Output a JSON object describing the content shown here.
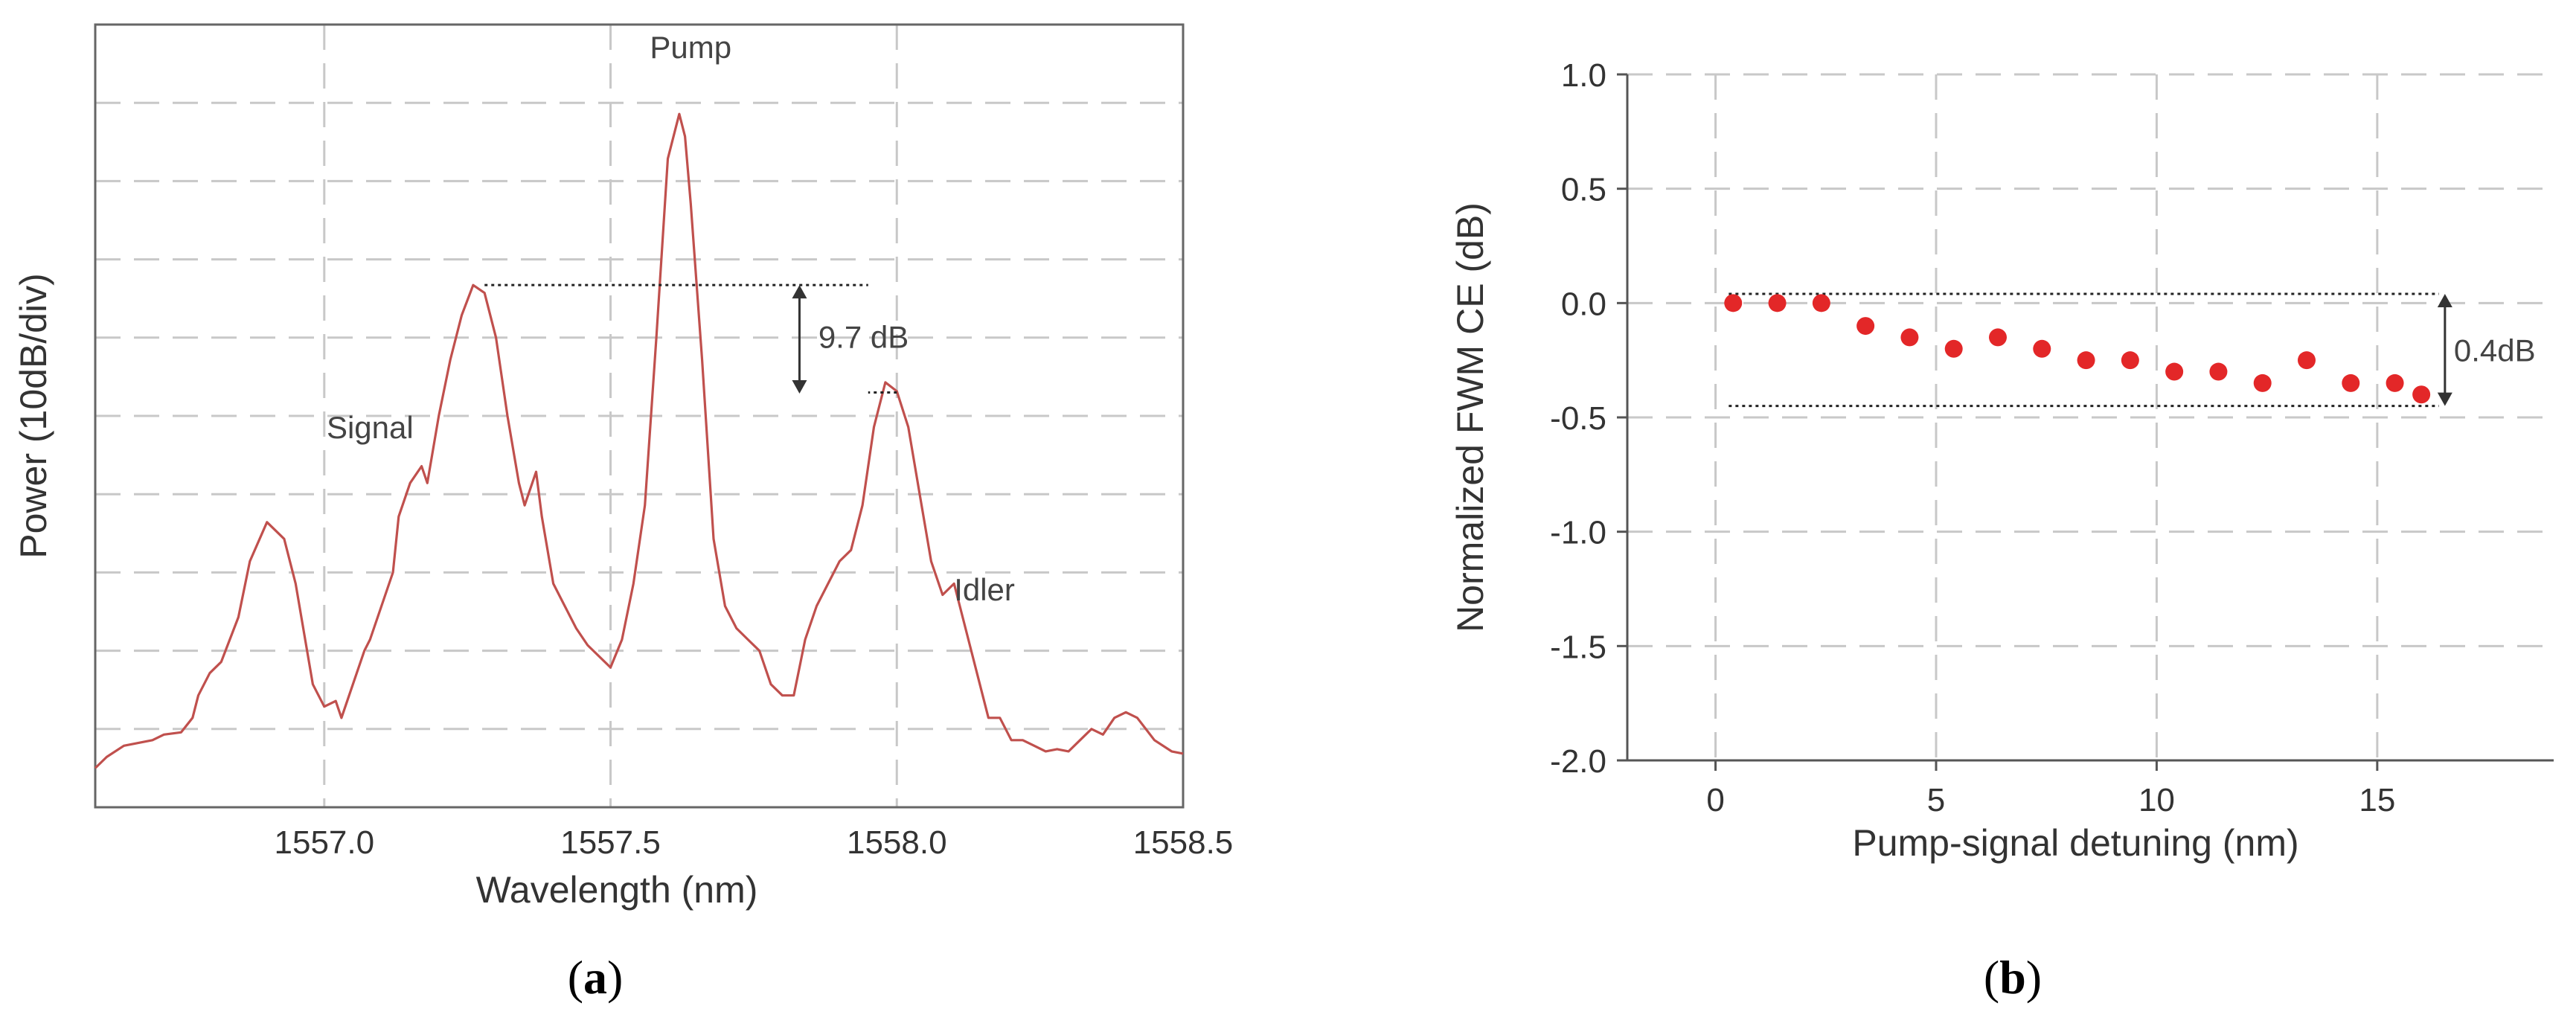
{
  "panels": [
    {
      "label_open": "(",
      "letter": "a",
      "label_close": ")"
    },
    {
      "label_open": "(",
      "letter": "b",
      "label_close": ")"
    }
  ],
  "chart_data": [
    {
      "type": "line",
      "title": "",
      "xlabel": "Wavelength (nm)",
      "ylabel": "Power (10dB/div)",
      "xlim": [
        1556.6,
        1558.5
      ],
      "ylim": [
        -70,
        0
      ],
      "x_ticks": [
        1557.0,
        1557.5,
        1558.0,
        1558.5
      ],
      "x_tick_labels": [
        "1557.0",
        "1557.5",
        "1558.0",
        "1558.5"
      ],
      "y_tick_labels": [],
      "grid": true,
      "line_color": "#c0504d",
      "series": [
        {
          "x": [
            1556.6,
            1556.62,
            1556.65,
            1556.7,
            1556.72,
            1556.75,
            1556.77,
            1556.78,
            1556.8,
            1556.82,
            1556.85,
            1556.87,
            1556.9,
            1556.93,
            1556.95,
            1556.97,
            1556.98,
            1557.0,
            1557.02,
            1557.03,
            1557.05,
            1557.07,
            1557.08,
            1557.1,
            1557.12,
            1557.13,
            1557.15,
            1557.17,
            1557.18,
            1557.2,
            1557.22,
            1557.24,
            1557.26,
            1557.28,
            1557.3,
            1557.32,
            1557.34,
            1557.35,
            1557.37,
            1557.38,
            1557.4,
            1557.42,
            1557.44,
            1557.46,
            1557.48,
            1557.5,
            1557.52,
            1557.54,
            1557.56,
            1557.58,
            1557.6,
            1557.62,
            1557.63,
            1557.64,
            1557.66,
            1557.68,
            1557.7,
            1557.72,
            1557.74,
            1557.76,
            1557.78,
            1557.8,
            1557.82,
            1557.84,
            1557.86,
            1557.88,
            1557.9,
            1557.92,
            1557.94,
            1557.96,
            1557.98,
            1558.0,
            1558.02,
            1558.04,
            1558.06,
            1558.08,
            1558.1,
            1558.12,
            1558.14,
            1558.16,
            1558.18,
            1558.2,
            1558.22,
            1558.24,
            1558.26,
            1558.28,
            1558.3,
            1558.32,
            1558.34,
            1558.36,
            1558.38,
            1558.4,
            1558.42,
            1558.45,
            1558.48,
            1558.5
          ],
          "y": [
            -66.5,
            -65.5,
            -64.5,
            -64,
            -63.5,
            -63.3,
            -62,
            -60,
            -58,
            -57,
            -53,
            -48,
            -44.5,
            -46,
            -50,
            -56,
            -59,
            -61,
            -60.5,
            -62,
            -59,
            -56,
            -55,
            -52,
            -49,
            -44,
            -41,
            -39.5,
            -41,
            -35,
            -30,
            -26,
            -23.3,
            -24,
            -28,
            -35,
            -41,
            -43,
            -40,
            -44,
            -50,
            -52,
            -54,
            -55.5,
            -56.5,
            -57.5,
            -55,
            -50,
            -43,
            -28,
            -12,
            -8,
            -10,
            -16,
            -30,
            -46,
            -52,
            -54,
            -55,
            -56,
            -59,
            -60,
            -60,
            -55,
            -52,
            -50,
            -48,
            -47,
            -43,
            -36,
            -32,
            -32.8,
            -36,
            -42,
            -48,
            -51,
            -50,
            -54,
            -58,
            -62,
            -62,
            -64,
            -64,
            -64.5,
            -65,
            -64.8,
            -65,
            -64,
            -63,
            -63.5,
            -62,
            -61.5,
            -62,
            -64,
            -65,
            -65.2
          ],
          "stroke_width": 3.2
        }
      ],
      "annotations": [
        {
          "text": "Pump",
          "x": 1557.64,
          "y": -3
        },
        {
          "text": "Signal",
          "x": 1557.08,
          "y": -37
        },
        {
          "text": "Idler",
          "x": 1558.1,
          "y": -51.5
        },
        {
          "text": "9.7 dB",
          "x": 1557.85,
          "y": -27.9
        }
      ],
      "reference_lines": [
        {
          "x1": 1557.28,
          "x2": 1557.95,
          "y": -23.3
        },
        {
          "x1": 1558.0,
          "x2": 1557.95,
          "y": -32.9
        }
      ],
      "difference_arrow": {
        "x": 1557.83,
        "y1": -23.3,
        "y2": -33.0,
        "label": "9.7 dB"
      }
    },
    {
      "type": "scatter",
      "title": "",
      "xlabel": "Pump-signal detuning (nm)",
      "ylabel": "Normalized FWM CE (dB)",
      "xlim": [
        -2,
        19
      ],
      "ylim": [
        -2.0,
        1.0
      ],
      "x_ticks": [
        0,
        5,
        10,
        15
      ],
      "x_tick_labels": [
        "0",
        "5",
        "10",
        "15"
      ],
      "y_ticks": [
        1.0,
        0.5,
        0.0,
        -0.5,
        -1.0,
        -1.5,
        -2.0
      ],
      "y_tick_labels": [
        "1.0",
        "0.5",
        "0.0",
        "-0.5",
        "-1.0",
        "-1.5",
        "-2.0"
      ],
      "grid": true,
      "marker_color": "#e32728",
      "series": [
        {
          "x": [
            0.4,
            1.4,
            2.4,
            3.4,
            4.4,
            5.4,
            6.4,
            7.4,
            8.4,
            9.4,
            10.4,
            11.4,
            12.4,
            13.4,
            14.4,
            15.4,
            16.0
          ],
          "y": [
            0.0,
            0.0,
            0.0,
            -0.1,
            -0.15,
            -0.2,
            -0.15,
            -0.2,
            -0.25,
            -0.25,
            -0.3,
            -0.3,
            -0.35,
            -0.25,
            -0.35,
            -0.35,
            -0.4
          ]
        }
      ],
      "reference_lines": [
        {
          "x1": 0.3,
          "x2": 16.4,
          "y": 0.04
        },
        {
          "x1": 0.3,
          "x2": 16.4,
          "y": -0.45
        }
      ],
      "difference_arrow": {
        "x": 16.4,
        "y1": 0.04,
        "y2": -0.45,
        "label": "0.4dB"
      }
    }
  ]
}
